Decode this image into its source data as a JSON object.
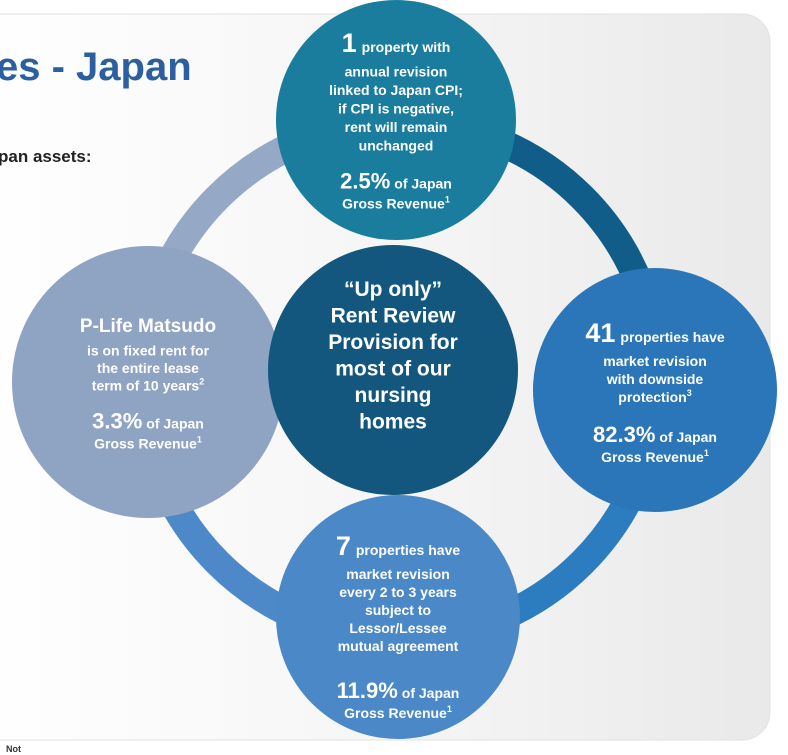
{
  "header": {
    "title": "es - Japan",
    "subtitle": "pan assets:"
  },
  "center": {
    "lines": [
      "“Up only”",
      "Rent Review",
      "Provision for",
      "most of our",
      "nursing",
      "homes"
    ]
  },
  "nodes": [
    {
      "lead": "1",
      "lead_text": "property with",
      "lines": [
        "annual revision",
        "linked to Japan CPI;",
        "if CPI is negative,",
        "rent will remain",
        "unchanged"
      ],
      "pct": "2.5%",
      "pct_text": "of Japan",
      "pct_line2": "Gross Revenue",
      "pct_note": "1"
    },
    {
      "lead": "41",
      "lead_text": "properties have",
      "lines": [
        "market revision",
        "with downside",
        "protection"
      ],
      "lines_note": "3",
      "pct": "82.3%",
      "pct_text": "of Japan",
      "pct_line2": "Gross Revenue",
      "pct_note": "1"
    },
    {
      "lead": "7",
      "lead_text": "properties have",
      "lines": [
        "market revision",
        "every 2 to 3 years",
        "subject to",
        "Lessor/Lessee",
        "mutual agreement"
      ],
      "pct": "11.9%",
      "pct_text": "of Japan",
      "pct_line2": "Gross Revenue",
      "pct_note": "1"
    },
    {
      "lead": "P-Life Matsudo",
      "lines": [
        "is on fixed rent for",
        "the entire lease",
        "term of 10 years"
      ],
      "lines_note": "2",
      "pct": "3.3%",
      "pct_text": "of Japan",
      "pct_line2": "Gross Revenue",
      "pct_note": "1"
    }
  ],
  "footer": {
    "notes": "Not"
  }
}
